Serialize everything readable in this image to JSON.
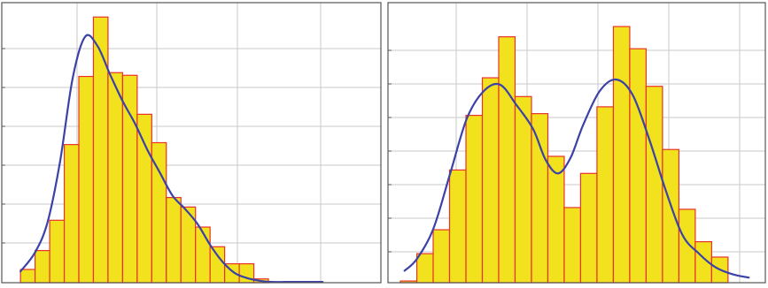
{
  "chart_data": [
    {
      "type": "histogram",
      "title": "",
      "xlabel": "",
      "ylabel": "",
      "grid": true,
      "legend": "none",
      "xlim": [
        0.3,
        9.4
      ],
      "ylim": [
        0,
        7.4
      ],
      "bins": {
        "start": 0.75,
        "width": 0.35
      },
      "values": [
        0.35,
        0.85,
        1.65,
        3.65,
        5.45,
        7.02,
        5.55,
        5.48,
        4.45,
        3.7,
        2.25,
        2.0,
        1.47,
        0.95,
        0.5,
        0.5,
        0.1
      ],
      "density_curve": {
        "x": [
          0.75,
          1.1,
          1.4,
          1.7,
          2.0,
          2.3,
          2.6,
          2.9,
          3.2,
          3.5,
          3.8,
          4.1,
          4.4,
          4.7,
          5.0,
          5.3,
          5.6,
          5.9,
          6.2,
          6.5,
          6.8,
          7.1,
          7.4,
          7.7,
          8.0
        ],
        "y": [
          0.3,
          0.8,
          1.6,
          3.2,
          5.4,
          6.5,
          6.25,
          5.5,
          4.8,
          4.2,
          3.5,
          2.9,
          2.3,
          1.95,
          1.55,
          1.0,
          0.55,
          0.25,
          0.12,
          0.05,
          0.02,
          0.02,
          0.02,
          0.02,
          0.02
        ]
      },
      "colors": {
        "bar_fill": "#f2e21e",
        "bar_edge": "#e8322a",
        "curve": "#3c41a8",
        "grid": "#c8c8c8",
        "frame": "#555555"
      }
    },
    {
      "type": "histogram",
      "title": "",
      "xlabel": "",
      "ylabel": "",
      "grid": true,
      "legend": "none",
      "xlim": [
        0.3,
        9.4
      ],
      "ylim": [
        0,
        8.2
      ],
      "bins": {
        "start": 0.6,
        "width": 0.395
      },
      "values": [
        0.05,
        0.85,
        1.55,
        3.3,
        4.9,
        6.0,
        7.2,
        5.45,
        4.95,
        3.7,
        2.2,
        3.2,
        5.15,
        7.5,
        6.85,
        5.75,
        3.9,
        2.15,
        1.2,
        0.75
      ],
      "density_curve": {
        "x": [
          0.7,
          1.0,
          1.4,
          1.8,
          2.2,
          2.6,
          3.0,
          3.4,
          3.8,
          4.1,
          4.4,
          4.7,
          5.0,
          5.4,
          5.8,
          6.2,
          6.6,
          7.0,
          7.4,
          7.8,
          8.2,
          8.6,
          9.0
        ],
        "y": [
          0.35,
          0.7,
          1.6,
          3.2,
          4.8,
          5.6,
          5.8,
          5.2,
          4.5,
          3.6,
          3.2,
          3.65,
          4.6,
          5.6,
          5.95,
          5.5,
          4.2,
          2.7,
          1.4,
          0.85,
          0.45,
          0.25,
          0.15
        ]
      },
      "colors": {
        "bar_fill": "#f2e21e",
        "bar_edge": "#e8322a",
        "curve": "#3c41a8",
        "grid": "#c8c8c8",
        "frame": "#555555"
      }
    }
  ]
}
